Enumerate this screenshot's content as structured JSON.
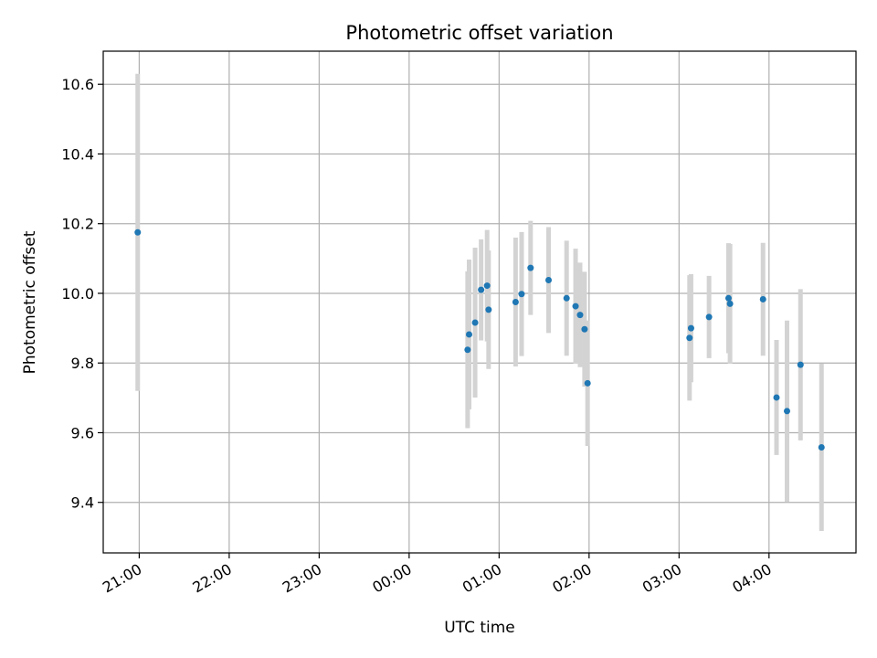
{
  "chart_data": {
    "type": "scatter",
    "title": "Photometric offset variation",
    "xlabel": "UTC time",
    "ylabel": "Photometric offset",
    "xlim": [
      "20:36",
      "04:58"
    ],
    "ylim": [
      9.255,
      10.695
    ],
    "grid": true,
    "x_ticks": [
      "21:00",
      "22:00",
      "23:00",
      "00:00",
      "01:00",
      "02:00",
      "03:00",
      "04:00"
    ],
    "y_ticks": [
      "9.4",
      "9.6",
      "9.8",
      "10.0",
      "10.2",
      "10.4",
      "10.6"
    ],
    "points": [
      {
        "x": "20:59",
        "y": 10.175,
        "err": 0.455
      },
      {
        "x": "00:39",
        "y": 9.838,
        "err": 0.225
      },
      {
        "x": "00:40",
        "y": 9.882,
        "err": 0.215
      },
      {
        "x": "00:44",
        "y": 9.916,
        "err": 0.215
      },
      {
        "x": "00:48",
        "y": 10.01,
        "err": 0.145
      },
      {
        "x": "00:52",
        "y": 10.022,
        "err": 0.16
      },
      {
        "x": "00:53",
        "y": 9.953,
        "err": 0.17
      },
      {
        "x": "01:11",
        "y": 9.975,
        "err": 0.185
      },
      {
        "x": "01:15",
        "y": 9.998,
        "err": 0.178
      },
      {
        "x": "01:21",
        "y": 10.073,
        "err": 0.135
      },
      {
        "x": "01:33",
        "y": 10.038,
        "err": 0.152
      },
      {
        "x": "01:45",
        "y": 9.986,
        "err": 0.165
      },
      {
        "x": "01:51",
        "y": 9.963,
        "err": 0.165
      },
      {
        "x": "01:54",
        "y": 9.938,
        "err": 0.15
      },
      {
        "x": "01:57",
        "y": 9.897,
        "err": 0.165
      },
      {
        "x": "01:59",
        "y": 9.742,
        "err": 0.18
      },
      {
        "x": "03:07",
        "y": 9.872,
        "err": 0.18
      },
      {
        "x": "03:08",
        "y": 9.9,
        "err": 0.155
      },
      {
        "x": "03:20",
        "y": 9.932,
        "err": 0.118
      },
      {
        "x": "03:33",
        "y": 9.986,
        "err": 0.158
      },
      {
        "x": "03:34",
        "y": 9.97,
        "err": 0.172
      },
      {
        "x": "03:56",
        "y": 9.983,
        "err": 0.162
      },
      {
        "x": "04:05",
        "y": 9.701,
        "err": 0.165
      },
      {
        "x": "04:12",
        "y": 9.662,
        "err": 0.26
      },
      {
        "x": "04:21",
        "y": 9.795,
        "err": 0.217
      },
      {
        "x": "04:35",
        "y": 9.558,
        "err": 0.24
      }
    ],
    "colors": {
      "point": "#1f77b4",
      "errorbar": "#d3d3d3",
      "grid": "#b0b0b0"
    }
  }
}
